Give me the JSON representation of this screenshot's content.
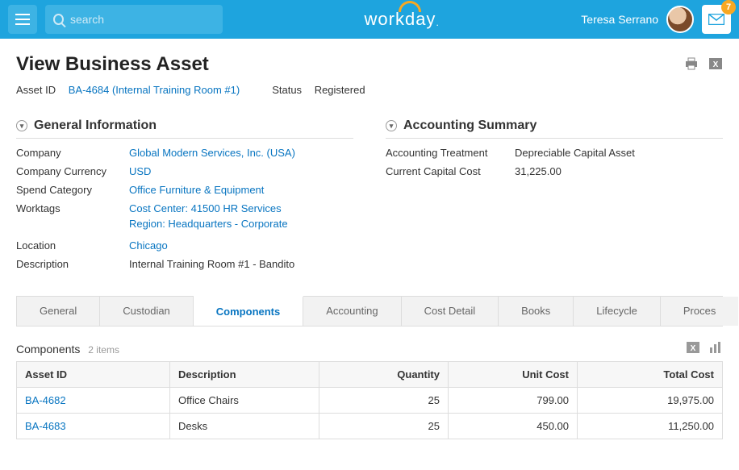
{
  "header": {
    "search_placeholder": "search",
    "brand": "workday",
    "user_name": "Teresa Serrano",
    "inbox_count": "7"
  },
  "page": {
    "title": "View Business Asset",
    "asset_id_label": "Asset ID",
    "asset_id_link": "BA-4684 (Internal Training Room #1)",
    "status_label": "Status",
    "status_value": "Registered"
  },
  "general": {
    "heading": "General Information",
    "company_label": "Company",
    "company_value": "Global Modern Services, Inc. (USA)",
    "currency_label": "Company Currency",
    "currency_value": "USD",
    "spend_label": "Spend Category",
    "spend_value": "Office Furniture & Equipment",
    "worktags_label": "Worktags",
    "worktags_cc": "Cost Center: 41500 HR Services",
    "worktags_region": "Region: Headquarters - Corporate",
    "location_label": "Location",
    "location_value": "Chicago",
    "description_label": "Description",
    "description_value": "Internal Training Room #1 - Bandito"
  },
  "accounting": {
    "heading": "Accounting Summary",
    "treatment_label": "Accounting Treatment",
    "treatment_value": "Depreciable Capital Asset",
    "capital_label": "Current Capital Cost",
    "capital_value": "31,225.00"
  },
  "tabs": {
    "general": "General",
    "custodian": "Custodian",
    "components": "Components",
    "accounting": "Accounting",
    "cost_detail": "Cost Detail",
    "books": "Books",
    "lifecycle": "Lifecycle",
    "process": "Proces"
  },
  "components": {
    "title": "Components",
    "count": "2 items",
    "columns": {
      "asset_id": "Asset ID",
      "description": "Description",
      "quantity": "Quantity",
      "unit_cost": "Unit Cost",
      "total_cost": "Total Cost"
    },
    "rows": [
      {
        "asset_id": "BA-4682",
        "description": "Office Chairs",
        "quantity": "25",
        "unit_cost": "799.00",
        "total_cost": "19,975.00"
      },
      {
        "asset_id": "BA-4683",
        "description": "Desks",
        "quantity": "25",
        "unit_cost": "450.00",
        "total_cost": "11,250.00"
      }
    ]
  },
  "colors": {
    "topbar": "#1ea4de",
    "topbar_btn": "#3db3e4",
    "link": "#0875c1",
    "badge": "#f7a823",
    "border": "#dddddd",
    "tab_bg": "#f2f2f2"
  }
}
